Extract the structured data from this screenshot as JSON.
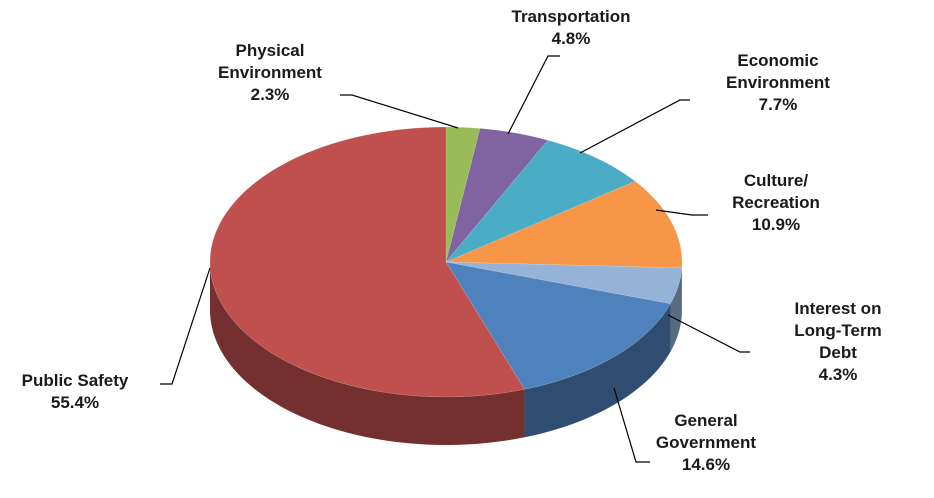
{
  "chart_data": {
    "type": "pie",
    "categories": [
      "Physical\nEnvironment",
      "Transportation",
      "Economic\nEnvironment",
      "Culture/\nRecreation",
      "Interest on\nLong-Term Debt",
      "General\nGovernment",
      "Public Safety"
    ],
    "values": [
      2.3,
      4.8,
      7.7,
      10.9,
      4.3,
      14.6,
      55.4
    ],
    "value_labels": [
      "2.3%",
      "4.8%",
      "7.7%",
      "10.9%",
      "4.3%",
      "14.6%",
      "55.4%"
    ],
    "colors": [
      "#9bbb59",
      "#8064a2",
      "#4bacc6",
      "#f79646",
      "#95b3d7",
      "#4f81bd",
      "#c0504d"
    ]
  }
}
